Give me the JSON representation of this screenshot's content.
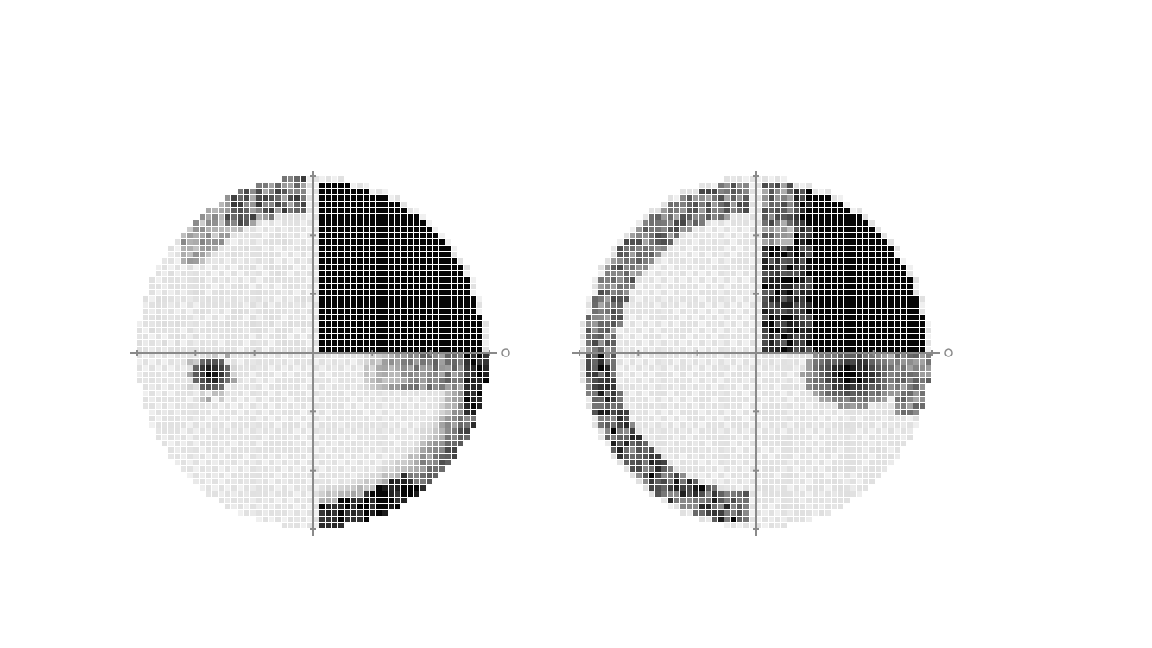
{
  "figure": {
    "left_field": {
      "eye": "left",
      "axis_end_label": "",
      "superior_nasal": {
        "level": 0.0,
        "speckles": true
      },
      "superior_temporal": {
        "level": 1.0,
        "pattern": "dense-black"
      },
      "inferior_nasal": {
        "level": 0.05,
        "focal_defect": true
      },
      "inferior_temporal": {
        "level": 0.6,
        "pattern": "arcuate-rim"
      },
      "rim_shading": "top-left"
    },
    "right_field": {
      "eye": "right",
      "axis_end_label": "",
      "superior_nasal": {
        "level": 0.15,
        "pattern": "rim-arc"
      },
      "superior_temporal": {
        "level": 1.0,
        "pattern": "dense-black-with-grey-strip"
      },
      "inferior_nasal": {
        "level": 0.2,
        "pattern": "rim-arc"
      },
      "inferior_temporal": {
        "level": 0.5,
        "pattern": "central-blotch"
      }
    },
    "colors": {
      "background": "#ffffff",
      "black": "#050505",
      "grid_light": "#e4e4e4",
      "grid_mid": "#bdbdbd",
      "axis": "#8a8a8a"
    }
  }
}
